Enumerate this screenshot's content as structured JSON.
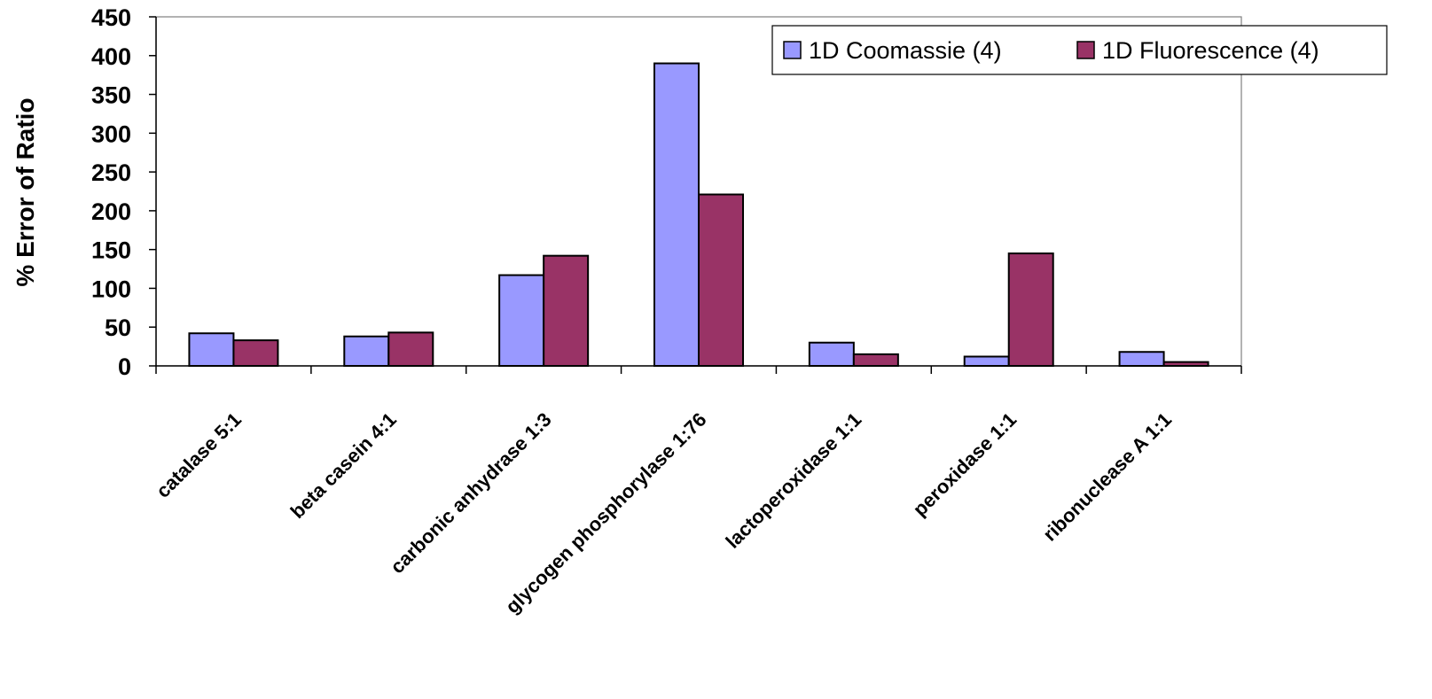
{
  "chart_data": {
    "type": "bar",
    "title": "",
    "xlabel": "",
    "ylabel": "% Error of Ratio",
    "ylim": [
      0,
      450
    ],
    "yticks": [
      0,
      50,
      100,
      150,
      200,
      250,
      300,
      350,
      400,
      450
    ],
    "categories": [
      "catalase 5:1",
      "beta casein 4:1",
      "carbonic anhydrase 1:3",
      "glycogen phosphorylase 1:76",
      "lactoperoxidase 1:1",
      "peroxidase 1:1",
      "ribonuclease A 1:1"
    ],
    "series": [
      {
        "name": "1D Coomassie (4)",
        "color": "#9999ff",
        "values": [
          42,
          38,
          117,
          390,
          30,
          12,
          18
        ]
      },
      {
        "name": "1D Fluorescence (4)",
        "color": "#993366",
        "values": [
          33,
          43,
          142,
          221,
          15,
          145,
          5
        ]
      }
    ],
    "legend": {
      "position": "top-right"
    },
    "grid": false
  }
}
